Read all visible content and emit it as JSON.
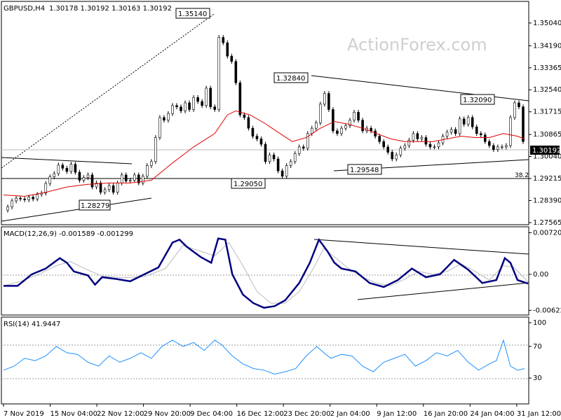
{
  "header": {
    "symbol": "GBPUSD,H4",
    "ohlc": "1.30178 1.30192 1.30163 1.30192",
    "watermark": "ActionForex.com"
  },
  "chart_data": [
    {
      "type": "candlestick",
      "title": "GBPUSD,H4",
      "ylim": [
        1.27565,
        1.3564
      ],
      "y_ticks": [
        "1.35040",
        "1.34190",
        "1.33365",
        "1.32540",
        "1.31715",
        "1.30865",
        "1.30040",
        "1.29215",
        "1.28390",
        "1.27565"
      ],
      "x_ticks": [
        "7 Nov 2019",
        "15 Nov 04:00",
        "22 Nov 12:00",
        "29 Nov 20:00",
        "9 Dec 04:00",
        "16 Dec 12:00",
        "23 Dec 20:00",
        "2 Jan 04:00",
        "9 Jan 12:00",
        "16 Jan 20:00",
        "24 Jan 04:00",
        "31 Jan 12:00"
      ],
      "last_price": "1.30192",
      "annotations": [
        "1.35140",
        "1.32840",
        "1.32090",
        "1.29050",
        "1.29548",
        "1.28279",
        "38.2"
      ],
      "series": [
        {
          "name": "price",
          "x": [
            0,
            6,
            12,
            18,
            24,
            30,
            36,
            42,
            48,
            54,
            60,
            66,
            72,
            78,
            84,
            90,
            96,
            102,
            108,
            114,
            120,
            126,
            132,
            138,
            144,
            150,
            156,
            162,
            168,
            174,
            180,
            186,
            192,
            198,
            204,
            210,
            216,
            222,
            228,
            234,
            240,
            246,
            252,
            258,
            264,
            270,
            276,
            282,
            288,
            294,
            300,
            306,
            312,
            318,
            324,
            330,
            336,
            342,
            348,
            354,
            360,
            366,
            372,
            378,
            384,
            390,
            396,
            402,
            408,
            414,
            420,
            426,
            432,
            438,
            444,
            450,
            456,
            462,
            468,
            474,
            480,
            486,
            492,
            498,
            504,
            510,
            516,
            522,
            528,
            534,
            540,
            546,
            552,
            558,
            564,
            570,
            576,
            582,
            588,
            594,
            600,
            606,
            612,
            618,
            624,
            630,
            636,
            642,
            648,
            654,
            660,
            666,
            672,
            678,
            684,
            690,
            696,
            702,
            708,
            714,
            720,
            726,
            732,
            738
          ],
          "values": [
            1.2803,
            1.2815,
            1.2838,
            1.2848,
            1.2845,
            1.2842,
            1.2852,
            1.2845,
            1.2862,
            1.2867,
            1.2903,
            1.2928,
            1.294,
            1.2972,
            1.296,
            1.2948,
            1.2975,
            1.2945,
            1.2915,
            1.2925,
            1.2935,
            1.289,
            1.2905,
            1.287,
            1.288,
            1.2895,
            1.287,
            1.2905,
            1.2935,
            1.2912,
            1.2915,
            1.2935,
            1.2905,
            1.293,
            1.297,
            1.2985,
            1.3075,
            1.315,
            1.314,
            1.3165,
            1.3195,
            1.319,
            1.3175,
            1.3205,
            1.318,
            1.3225,
            1.321,
            1.3195,
            1.326,
            1.319,
            1.318,
            1.345,
            1.343,
            1.338,
            1.336,
            1.328,
            1.316,
            1.315,
            1.311,
            1.308,
            1.307,
            1.305,
            1.2985,
            1.301,
            1.2995,
            1.295,
            1.293,
            1.297,
            1.2985,
            1.3015,
            1.304,
            1.3035,
            1.309,
            1.311,
            1.313,
            1.32,
            1.324,
            1.318,
            1.31,
            1.309,
            1.311,
            1.312,
            1.314,
            1.317,
            1.314,
            1.31,
            1.311,
            1.31,
            1.308,
            1.306,
            1.304,
            1.302,
            1.2995,
            1.301,
            1.3035,
            1.3045,
            1.3065,
            1.309,
            1.307,
            1.3075,
            1.305,
            1.304,
            1.304,
            1.3055,
            1.308,
            1.3095,
            1.3105,
            1.309,
            1.3145,
            1.3125,
            1.315,
            1.3115,
            1.309,
            1.3085,
            1.306,
            1.3045,
            1.303,
            1.304,
            1.304,
            1.3045,
            1.315,
            1.3205,
            1.319,
            1.306
          ]
        },
        {
          "name": "ma",
          "x": [
            0,
            30,
            60,
            90,
            120,
            150,
            180,
            210,
            240,
            270,
            300,
            318,
            330,
            350,
            370,
            390,
            410,
            430,
            450,
            470,
            490,
            510,
            530,
            550,
            570,
            590,
            610,
            630,
            650,
            670,
            690,
            710,
            730,
            740
          ],
          "values": [
            1.286,
            1.2855,
            1.287,
            1.289,
            1.29,
            1.2905,
            1.2905,
            1.2915,
            1.298,
            1.304,
            1.309,
            1.316,
            1.3175,
            1.316,
            1.313,
            1.3095,
            1.306,
            1.3075,
            1.311,
            1.3135,
            1.3125,
            1.311,
            1.309,
            1.307,
            1.306,
            1.306,
            1.306,
            1.307,
            1.308,
            1.3075,
            1.3075,
            1.309,
            1.308,
            1.307
          ]
        }
      ]
    },
    {
      "type": "line",
      "title": "MACD(12,26,9) -0.001589 -0.001299",
      "ylim": [
        -0.0068,
        0.0075
      ],
      "y_ticks": [
        "0.007201",
        "0.00",
        "-0.006229"
      ],
      "series": [
        {
          "name": "macd",
          "x": [
            0,
            20,
            40,
            60,
            80,
            90,
            100,
            120,
            130,
            140,
            160,
            180,
            200,
            220,
            240,
            250,
            260,
            280,
            295,
            305,
            315,
            325,
            340,
            355,
            370,
            385,
            400,
            420,
            435,
            448,
            460,
            470,
            480,
            500,
            520,
            540,
            560,
            580,
            600,
            620,
            640,
            660,
            680,
            700,
            712,
            720,
            730,
            745
          ],
          "values": [
            -0.002,
            -0.002,
            0.0,
            0.001,
            0.0028,
            0.002,
            0.0005,
            -0.0002,
            -0.0018,
            -0.0005,
            -0.0008,
            -0.0012,
            0.0,
            0.0012,
            0.0055,
            0.006,
            0.0048,
            0.003,
            0.002,
            0.0062,
            0.006,
            0.0,
            -0.0035,
            -0.005,
            -0.0058,
            -0.0055,
            -0.0045,
            -0.0015,
            0.002,
            0.006,
            0.004,
            0.002,
            0.001,
            0.0005,
            -0.0015,
            -0.0022,
            -0.001,
            0.001,
            -0.0005,
            0.0,
            0.0025,
            0.0008,
            -0.0015,
            -0.001,
            0.0028,
            0.002,
            -0.001,
            -0.0016
          ]
        },
        {
          "name": "signal",
          "x": [
            0,
            25,
            50,
            75,
            95,
            115,
            140,
            170,
            200,
            230,
            255,
            280,
            300,
            320,
            340,
            360,
            380,
            400,
            420,
            440,
            455,
            470,
            490,
            510,
            530,
            550,
            570,
            590,
            610,
            630,
            650,
            670,
            690,
            710,
            725,
            745
          ],
          "values": [
            -0.002,
            -0.0012,
            0.0,
            0.0015,
            0.0022,
            0.001,
            -0.0003,
            -0.0006,
            -0.0004,
            0.001,
            0.005,
            0.004,
            0.0032,
            0.0055,
            0.0015,
            -0.003,
            -0.005,
            -0.005,
            -0.003,
            0.001,
            0.0045,
            0.003,
            0.001,
            -0.0005,
            -0.0015,
            -0.002,
            -0.0008,
            0.0005,
            0.0,
            0.0005,
            0.0018,
            0.0005,
            -0.001,
            0.0015,
            0.0012,
            -0.0013
          ]
        }
      ]
    },
    {
      "type": "line",
      "title": "RSI(14) 41.9447",
      "ylim": [
        0,
        100
      ],
      "y_ticks": [
        "100",
        "70",
        "30"
      ],
      "series": [
        {
          "name": "rsi",
          "x": [
            0,
            15,
            30,
            45,
            60,
            75,
            90,
            105,
            120,
            135,
            150,
            165,
            180,
            195,
            210,
            225,
            240,
            255,
            270,
            285,
            300,
            310,
            325,
            340,
            355,
            370,
            385,
            400,
            415,
            430,
            445,
            455,
            465,
            480,
            495,
            510,
            525,
            540,
            555,
            570,
            585,
            600,
            615,
            630,
            645,
            660,
            675,
            690,
            700,
            710,
            720,
            730,
            740
          ],
          "values": [
            40,
            45,
            55,
            52,
            58,
            70,
            62,
            60,
            50,
            45,
            58,
            50,
            55,
            62,
            55,
            70,
            78,
            70,
            75,
            65,
            78,
            72,
            58,
            48,
            42,
            40,
            35,
            38,
            42,
            58,
            70,
            62,
            55,
            60,
            58,
            45,
            38,
            50,
            55,
            60,
            45,
            52,
            62,
            58,
            65,
            50,
            40,
            48,
            52,
            78,
            45,
            40,
            42
          ]
        }
      ]
    }
  ]
}
